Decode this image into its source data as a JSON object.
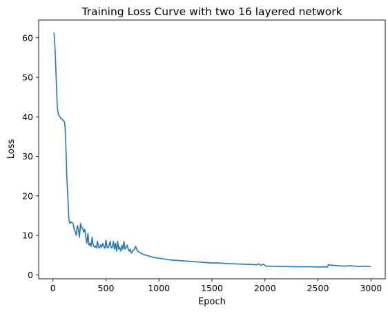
{
  "chart_data": {
    "type": "line",
    "title": "Training Loss Curve with two 16 layered network",
    "xlabel": "Epoch",
    "ylabel": "Loss",
    "xlim": [
      -135,
      3135
    ],
    "ylim": [
      -1.0,
      64.5
    ],
    "xticks": [
      0,
      500,
      1000,
      1500,
      2000,
      2500,
      3000
    ],
    "yticks": [
      0,
      10,
      20,
      30,
      40,
      50,
      60
    ],
    "grid": false,
    "line_color": "#1f77b4",
    "series": [
      {
        "x": [
          10,
          20,
          30,
          40,
          45,
          50,
          60,
          70,
          80,
          90,
          100,
          110,
          115,
          120,
          125,
          130,
          140,
          150,
          160,
          170,
          180,
          190,
          200,
          210,
          220,
          230,
          240,
          250,
          260,
          270,
          280,
          290,
          300,
          310,
          320,
          330,
          340,
          350,
          360,
          370,
          380,
          390,
          400,
          410,
          420,
          430,
          440,
          450,
          460,
          470,
          480,
          490,
          500,
          510,
          520,
          530,
          540,
          550,
          560,
          570,
          580,
          590,
          600,
          610,
          620,
          630,
          640,
          650,
          660,
          670,
          680,
          690,
          700,
          710,
          720,
          730,
          740,
          750,
          760,
          770,
          780,
          790,
          800,
          810,
          820,
          850,
          900,
          950,
          1000,
          1050,
          1100,
          1150,
          1200,
          1250,
          1300,
          1350,
          1400,
          1450,
          1500,
          1550,
          1600,
          1650,
          1700,
          1750,
          1800,
          1850,
          1900,
          1920,
          1940,
          1960,
          1980,
          2000,
          2010,
          2050,
          2100,
          2200,
          2300,
          2400,
          2500,
          2590,
          2600,
          2610,
          2650,
          2700,
          2750,
          2800,
          2850,
          2900,
          2950,
          3000
        ],
        "y": [
          61.3,
          57,
          50,
          43,
          41.5,
          40.8,
          40.2,
          39.8,
          39.5,
          39.3,
          39.0,
          38.5,
          37,
          34,
          30,
          25,
          20,
          14,
          13.0,
          13.4,
          13.2,
          13.0,
          11.5,
          11.0,
          10.0,
          12.5,
          11.5,
          9.5,
          13.0,
          12.0,
          11.8,
          10.8,
          11.5,
          9.5,
          8.0,
          10.5,
          7.5,
          8.0,
          7.2,
          9.5,
          7.5,
          7.0,
          7.3,
          6.8,
          8.5,
          7.0,
          6.8,
          7.6,
          7.0,
          8.0,
          7.2,
          6.7,
          8.8,
          7.0,
          6.8,
          7.5,
          8.5,
          6.8,
          7.0,
          8.5,
          6.5,
          8.0,
          6.0,
          8.5,
          6.5,
          7.0,
          6.0,
          7.5,
          6.5,
          8.5,
          6.5,
          7.0,
          7.5,
          6.5,
          6.0,
          6.5,
          5.5,
          6.0,
          6.3,
          6.5,
          7.2,
          6.5,
          6.0,
          5.8,
          5.6,
          5.2,
          4.8,
          4.4,
          4.2,
          4.0,
          3.8,
          3.7,
          3.6,
          3.5,
          3.4,
          3.3,
          3.2,
          3.1,
          3.0,
          3.05,
          2.95,
          2.85,
          2.8,
          2.75,
          2.7,
          2.65,
          2.6,
          2.5,
          2.8,
          2.4,
          2.7,
          2.45,
          2.2,
          2.2,
          2.15,
          2.1,
          2.05,
          2.05,
          2.0,
          2.0,
          2.6,
          2.5,
          2.4,
          2.3,
          2.2,
          2.3,
          2.2,
          2.1,
          2.2,
          2.1
        ]
      }
    ]
  }
}
